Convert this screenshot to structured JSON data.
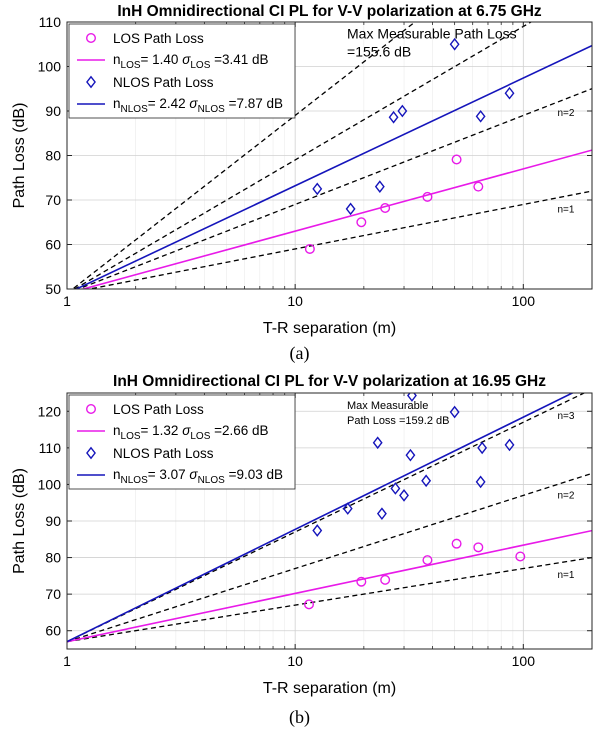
{
  "chart_data": [
    {
      "type": "scatter",
      "title": "InH Omnidirectional CI PL for V-V polarization at 6.75 GHz",
      "xlabel": "T-R separation (m)",
      "ylabel": "Path Loss (dB)",
      "xscale": "log",
      "xlim": [
        1,
        200
      ],
      "ylim": [
        50,
        110
      ],
      "xticks": [
        {
          "v": 1,
          "label": "1"
        },
        {
          "v": 10,
          "label": "10"
        },
        {
          "v": 100,
          "label": "100"
        }
      ],
      "yticks": [
        50,
        60,
        70,
        80,
        90,
        100,
        110
      ],
      "grid": true,
      "legend_position": "top-left",
      "fspl_1m": 49.0,
      "los_points": [
        [
          11.6,
          59
        ],
        [
          19.5,
          65
        ],
        [
          24.8,
          68.2
        ],
        [
          38,
          70.7
        ],
        [
          51,
          79.1
        ],
        [
          63.5,
          73
        ]
      ],
      "nlos_points": [
        [
          12.5,
          72.5
        ],
        [
          17.5,
          68
        ],
        [
          23.5,
          73
        ],
        [
          27,
          88.6
        ],
        [
          29.5,
          90
        ],
        [
          50,
          105
        ],
        [
          65,
          88.8
        ],
        [
          87,
          94
        ]
      ],
      "los_color": "#e81ae8",
      "nlos_color": "#1515bb",
      "ref_color": "#000000",
      "series": [
        {
          "name": "LOS Path Loss",
          "marker": "circle",
          "color": "#e81ae8"
        },
        {
          "fit_n": 1.4,
          "color": "#e81ae8",
          "legend": {
            "base": "n",
            "sub1": "LOS",
            "mid": "= 1.40 ",
            "sig": "σ",
            "sub2": "LOS",
            "tail": " =3.41 dB"
          }
        },
        {
          "name": "NLOS Path Loss",
          "marker": "diamond",
          "color": "#1515bb"
        },
        {
          "fit_n": 2.42,
          "color": "#1515bb",
          "legend": {
            "base": "n",
            "sub1": "NLOS",
            "mid": "= 2.42 ",
            "sig": "σ",
            "sub2": "NLOS",
            "tail": " =7.87 dB"
          }
        }
      ],
      "reference_lines": [
        {
          "n": 1,
          "label": "n=1",
          "label_at": 150
        },
        {
          "n": 2,
          "label": "n=2",
          "label_at": 150
        },
        {
          "n": 3,
          "label": "",
          "label_at": 150
        },
        {
          "n": 4,
          "label": "",
          "label_at": 150
        }
      ],
      "annotation": {
        "lines": [
          "Max Measurable Path Loss",
          "=155.6 dB"
        ],
        "x": 30,
        "y_top": 108.5,
        "font_size": 14
      },
      "caption": "(a)"
    },
    {
      "type": "scatter",
      "title": "InH Omnidirectional CI PL for V-V polarization at 16.95 GHz",
      "xlabel": "T-R separation (m)",
      "ylabel": "Path Loss (dB)",
      "xscale": "log",
      "xlim": [
        1,
        200
      ],
      "ylim": [
        55,
        125
      ],
      "xticks": [
        {
          "v": 1,
          "label": "1"
        },
        {
          "v": 10,
          "label": "10"
        },
        {
          "v": 100,
          "label": "100"
        }
      ],
      "yticks": [
        60,
        70,
        80,
        90,
        100,
        110,
        120
      ],
      "grid": true,
      "legend_position": "top-left",
      "fspl_1m": 57.0,
      "los_points": [
        [
          11.5,
          67.2
        ],
        [
          19.5,
          73.4
        ],
        [
          24.8,
          73.9
        ],
        [
          38,
          79.3
        ],
        [
          51,
          83.8
        ],
        [
          63.5,
          82.8
        ],
        [
          97,
          80.3
        ]
      ],
      "nlos_points": [
        [
          12.5,
          87.4
        ],
        [
          17,
          93.4
        ],
        [
          23,
          111.4
        ],
        [
          24,
          92
        ],
        [
          27.5,
          98.9
        ],
        [
          30,
          97
        ],
        [
          32,
          108
        ],
        [
          32.5,
          124.3
        ],
        [
          37.5,
          101
        ],
        [
          50,
          119.8
        ],
        [
          65,
          100.7
        ],
        [
          66,
          110
        ],
        [
          87,
          110.8
        ]
      ],
      "los_color": "#e81ae8",
      "nlos_color": "#1515bb",
      "ref_color": "#000000",
      "series": [
        {
          "name": "LOS Path Loss",
          "marker": "circle",
          "color": "#e81ae8"
        },
        {
          "fit_n": 1.32,
          "color": "#e81ae8",
          "legend": {
            "base": "n",
            "sub1": "LOS",
            "mid": "= 1.32 ",
            "sig": "σ",
            "sub2": "LOS",
            "tail": " =2.66 dB"
          }
        },
        {
          "name": "NLOS Path Loss",
          "marker": "diamond",
          "color": "#1515bb"
        },
        {
          "fit_n": 3.07,
          "color": "#1515bb",
          "legend": {
            "base": "n",
            "sub1": "NLOS",
            "mid": "= 3.07 ",
            "sig": "σ",
            "sub2": "NLOS",
            "tail": " =9.03 dB"
          }
        }
      ],
      "reference_lines": [
        {
          "n": 1,
          "label": "n=1",
          "label_at": 150
        },
        {
          "n": 2,
          "label": "n=2",
          "label_at": 150
        },
        {
          "n": 3,
          "label": "n=3",
          "label_at": 150
        }
      ],
      "annotation": {
        "lines": [
          "Max Measurable",
          "Path Loss =159.2 dB"
        ],
        "x": 30,
        "y_top": 123.3,
        "font_size": 11
      },
      "caption": "(b)"
    }
  ]
}
